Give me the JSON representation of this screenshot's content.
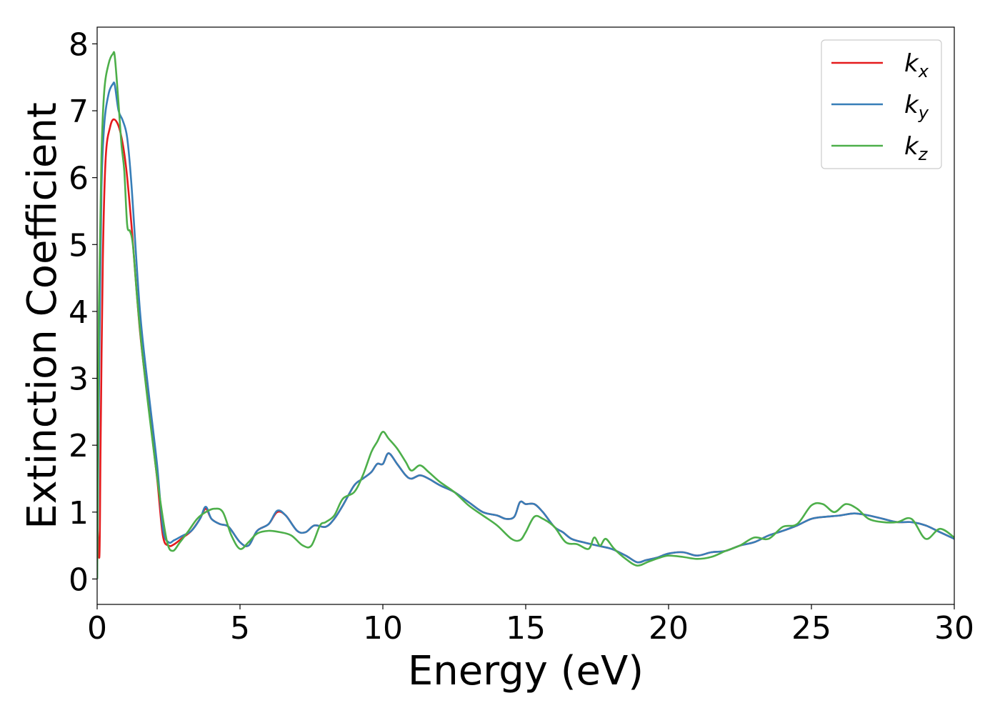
{
  "chart_data": {
    "type": "line",
    "title": "",
    "xlabel": "Energy (eV)",
    "ylabel": "Extinction Coefficient",
    "xlim": [
      0,
      30
    ],
    "ylim": [
      -0.38,
      8.25
    ],
    "xticks": [
      0,
      5,
      10,
      15,
      20,
      25,
      30
    ],
    "yticks": [
      0,
      1,
      2,
      3,
      4,
      5,
      6,
      7,
      8
    ],
    "grid": false,
    "legend_position": "top-right",
    "series": [
      {
        "name": "k",
        "subscript": "x",
        "color": "#e41a1c",
        "x": [
          0.0,
          0.08,
          0.12,
          0.2,
          0.3,
          0.45,
          0.6,
          0.8,
          1.0,
          1.2,
          1.5,
          1.8,
          2.1,
          2.3,
          2.5,
          2.7,
          3.0,
          3.3,
          3.6,
          3.8,
          4.0,
          4.3,
          4.6,
          5.0,
          5.3,
          5.6,
          6.0,
          6.3,
          6.6,
          7.0,
          7.3,
          7.6,
          8.0,
          8.3,
          8.6,
          9.0,
          9.3,
          9.6,
          9.8,
          10.0,
          10.2,
          10.5,
          10.8,
          11.0,
          11.3,
          11.6,
          12.0,
          12.5,
          13.0,
          13.5,
          14.0,
          14.3,
          14.6,
          14.8,
          15.0,
          15.3,
          15.6,
          16.0,
          16.3,
          16.6,
          17.0,
          17.5,
          18.0,
          18.5,
          18.9,
          19.2,
          19.6,
          20.0,
          20.5,
          21.0,
          21.5,
          22.0,
          22.5,
          23.0,
          23.5,
          24.0,
          24.5,
          25.0,
          25.5,
          26.0,
          26.5,
          27.0,
          27.5,
          28.0,
          28.5,
          29.0,
          29.5,
          30.0
        ],
        "y": [
          0.9,
          0.35,
          2.0,
          4.8,
          6.3,
          6.75,
          6.87,
          6.7,
          6.2,
          5.3,
          3.7,
          2.6,
          1.5,
          0.65,
          0.5,
          0.52,
          0.62,
          0.72,
          0.9,
          1.05,
          0.9,
          0.82,
          0.78,
          0.55,
          0.5,
          0.72,
          0.82,
          1.0,
          0.95,
          0.72,
          0.7,
          0.8,
          0.78,
          0.9,
          1.1,
          1.4,
          1.5,
          1.6,
          1.72,
          1.72,
          1.88,
          1.72,
          1.55,
          1.5,
          1.55,
          1.5,
          1.4,
          1.3,
          1.15,
          1.0,
          0.95,
          0.9,
          0.93,
          1.15,
          1.12,
          1.12,
          1.0,
          0.78,
          0.7,
          0.6,
          0.55,
          0.5,
          0.45,
          0.35,
          0.25,
          0.28,
          0.32,
          0.38,
          0.4,
          0.35,
          0.4,
          0.42,
          0.5,
          0.55,
          0.65,
          0.72,
          0.8,
          0.9,
          0.93,
          0.95,
          0.98,
          0.95,
          0.9,
          0.85,
          0.85,
          0.8,
          0.7,
          0.6
        ]
      },
      {
        "name": "k",
        "subscript": "y",
        "color": "#377eb8",
        "x": [
          0.0,
          0.08,
          0.15,
          0.25,
          0.4,
          0.55,
          0.62,
          0.75,
          0.9,
          1.05,
          1.2,
          1.5,
          1.8,
          2.1,
          2.3,
          2.5,
          2.7,
          3.0,
          3.3,
          3.6,
          3.8,
          4.0,
          4.3,
          4.6,
          5.0,
          5.3,
          5.6,
          6.0,
          6.3,
          6.6,
          7.0,
          7.3,
          7.6,
          8.0,
          8.3,
          8.6,
          9.0,
          9.3,
          9.6,
          9.8,
          10.0,
          10.2,
          10.5,
          10.8,
          11.0,
          11.3,
          11.6,
          12.0,
          12.5,
          13.0,
          13.5,
          14.0,
          14.3,
          14.6,
          14.8,
          15.0,
          15.3,
          15.6,
          16.0,
          16.3,
          16.6,
          17.0,
          17.5,
          18.0,
          18.5,
          18.9,
          19.2,
          19.6,
          20.0,
          20.5,
          21.0,
          21.5,
          22.0,
          22.5,
          23.0,
          23.5,
          24.0,
          24.5,
          25.0,
          25.5,
          26.0,
          26.5,
          27.0,
          27.5,
          28.0,
          28.5,
          29.0,
          29.5,
          30.0
        ],
        "y": [
          0.0,
          3.5,
          5.8,
          6.8,
          7.25,
          7.4,
          7.38,
          7.0,
          6.85,
          6.6,
          5.9,
          4.0,
          2.8,
          1.7,
          0.75,
          0.55,
          0.58,
          0.65,
          0.72,
          0.9,
          1.08,
          0.9,
          0.82,
          0.78,
          0.55,
          0.5,
          0.72,
          0.82,
          1.02,
          0.95,
          0.72,
          0.7,
          0.8,
          0.78,
          0.9,
          1.1,
          1.4,
          1.5,
          1.6,
          1.72,
          1.72,
          1.88,
          1.72,
          1.55,
          1.5,
          1.55,
          1.5,
          1.4,
          1.3,
          1.15,
          1.0,
          0.95,
          0.9,
          0.93,
          1.15,
          1.12,
          1.12,
          1.0,
          0.78,
          0.7,
          0.6,
          0.55,
          0.5,
          0.45,
          0.35,
          0.25,
          0.28,
          0.32,
          0.38,
          0.4,
          0.35,
          0.4,
          0.42,
          0.5,
          0.55,
          0.65,
          0.72,
          0.8,
          0.9,
          0.93,
          0.95,
          0.98,
          0.95,
          0.9,
          0.85,
          0.85,
          0.8,
          0.7,
          0.6
        ]
      },
      {
        "name": "k",
        "subscript": "z",
        "color": "#4daf4a",
        "x": [
          0.0,
          0.06,
          0.15,
          0.25,
          0.4,
          0.55,
          0.62,
          0.75,
          0.85,
          0.95,
          1.05,
          1.15,
          1.25,
          1.4,
          1.6,
          1.9,
          2.2,
          2.45,
          2.65,
          2.9,
          3.2,
          3.5,
          3.8,
          4.1,
          4.4,
          4.7,
          5.0,
          5.3,
          5.6,
          6.0,
          6.4,
          6.8,
          7.2,
          7.5,
          7.8,
          8.0,
          8.3,
          8.6,
          9.0,
          9.3,
          9.6,
          9.8,
          10.0,
          10.2,
          10.5,
          10.8,
          11.0,
          11.3,
          11.6,
          12.0,
          12.5,
          13.0,
          13.5,
          14.0,
          14.5,
          14.8,
          15.0,
          15.3,
          15.6,
          16.0,
          16.4,
          16.8,
          17.2,
          17.4,
          17.6,
          17.8,
          18.1,
          18.5,
          18.9,
          19.3,
          19.7,
          20.0,
          20.5,
          21.0,
          21.5,
          22.0,
          22.5,
          23.0,
          23.5,
          24.0,
          24.5,
          25.0,
          25.4,
          25.8,
          26.2,
          26.6,
          27.0,
          27.5,
          28.0,
          28.5,
          29.0,
          29.5,
          30.0
        ],
        "y": [
          0.0,
          4.0,
          6.3,
          7.3,
          7.7,
          7.85,
          7.8,
          7.1,
          6.5,
          6.1,
          5.3,
          5.2,
          5.0,
          4.2,
          3.3,
          2.2,
          1.2,
          0.55,
          0.42,
          0.55,
          0.72,
          0.9,
          1.0,
          1.05,
          1.0,
          0.65,
          0.45,
          0.55,
          0.68,
          0.72,
          0.7,
          0.65,
          0.5,
          0.5,
          0.8,
          0.85,
          0.95,
          1.2,
          1.3,
          1.55,
          1.9,
          2.05,
          2.2,
          2.1,
          1.95,
          1.75,
          1.62,
          1.7,
          1.6,
          1.45,
          1.3,
          1.1,
          0.95,
          0.8,
          0.6,
          0.58,
          0.7,
          0.93,
          0.9,
          0.78,
          0.55,
          0.52,
          0.45,
          0.62,
          0.5,
          0.6,
          0.45,
          0.3,
          0.2,
          0.26,
          0.32,
          0.35,
          0.33,
          0.3,
          0.33,
          0.42,
          0.5,
          0.62,
          0.6,
          0.78,
          0.82,
          1.1,
          1.12,
          1.0,
          1.12,
          1.05,
          0.9,
          0.85,
          0.85,
          0.9,
          0.6,
          0.75,
          0.62
        ]
      }
    ]
  }
}
